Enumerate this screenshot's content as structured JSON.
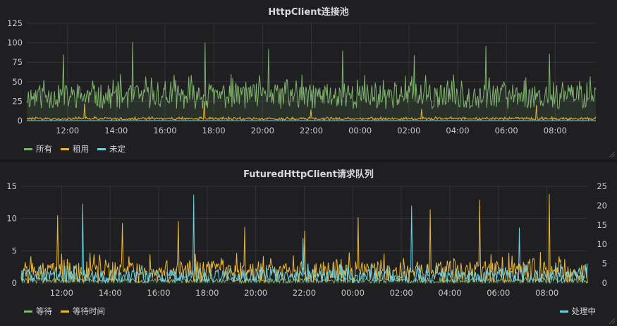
{
  "colors": {
    "green": "#7eb26d",
    "yellow": "#eab839",
    "blue": "#6ed0e0",
    "grid": "#333438"
  },
  "panels": [
    {
      "title": "HttpClient连接池",
      "legend": [
        "所有",
        "租用",
        "未定"
      ]
    },
    {
      "title": "FuturedHttpClient请求队列",
      "legend_left": [
        "等待",
        "等待时间"
      ],
      "legend_right": [
        "处理中"
      ]
    }
  ],
  "chart_data": [
    {
      "type": "line",
      "title": "HttpClient连接池",
      "x_range": [
        "10:20",
        "09:40"
      ],
      "x_ticks": [
        "12:00",
        "14:00",
        "16:00",
        "18:00",
        "20:00",
        "22:00",
        "00:00",
        "02:00",
        "04:00",
        "06:00",
        "08:00"
      ],
      "ylim": [
        0,
        125
      ],
      "y_ticks": [
        0,
        25,
        50,
        75,
        100,
        125
      ],
      "grid": true,
      "legend_position": "bottom-left",
      "series": [
        {
          "name": "所有",
          "color": "#7eb26d",
          "fill": true,
          "typical_range": [
            15,
            60
          ],
          "spikes": [
            85,
            101,
            100,
            92,
            90,
            84,
            96,
            86
          ],
          "last": 40
        },
        {
          "name": "租用",
          "color": "#eab839",
          "fill": false,
          "typical_range": [
            1,
            5
          ],
          "spikes": [
            22,
            25,
            14,
            15,
            20
          ],
          "last": 5
        },
        {
          "name": "未定",
          "color": "#6ed0e0",
          "fill": false,
          "typical_range": [
            0,
            0
          ],
          "last": 0
        }
      ]
    },
    {
      "type": "line",
      "title": "FuturedHttpClient请求队列",
      "x_range": [
        "10:20",
        "09:40"
      ],
      "x_ticks": [
        "12:00",
        "14:00",
        "16:00",
        "18:00",
        "20:00",
        "22:00",
        "00:00",
        "02:00",
        "04:00",
        "06:00",
        "08:00"
      ],
      "ylim_left": [
        0,
        15
      ],
      "y_ticks_left": [
        0,
        5,
        10,
        15
      ],
      "ylim_right": [
        0,
        25
      ],
      "y_ticks_right": [
        0,
        5,
        10,
        15,
        20,
        25
      ],
      "grid": true,
      "legend_position": "bottom-left / bottom-right",
      "series": [
        {
          "name": "等待",
          "color": "#7eb26d",
          "axis": "left",
          "typical_range": [
            0,
            1
          ]
        },
        {
          "name": "等待时间",
          "color": "#eab839",
          "axis": "right",
          "typical_range": [
            0,
            8
          ],
          "spikes": [
            17.5,
            15.5,
            16,
            14.5,
            13.5,
            17,
            19,
            21.5,
            23
          ],
          "last": 0
        },
        {
          "name": "处理中",
          "color": "#6ed0e0",
          "axis": "left",
          "typical_range": [
            0,
            3
          ],
          "spikes": [
            12.3,
            13.7,
            7,
            12,
            8.6
          ],
          "last": 3
        }
      ]
    }
  ]
}
